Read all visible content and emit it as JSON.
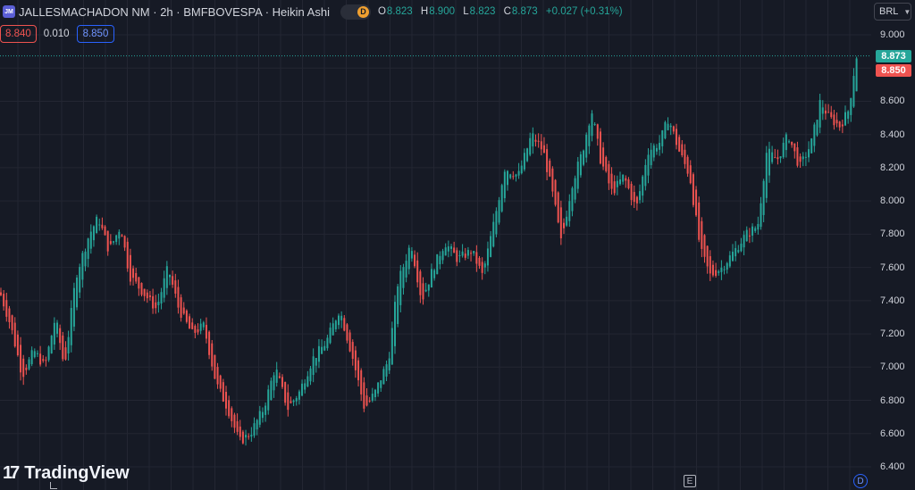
{
  "header": {
    "symbol_icon": "JM",
    "title": "JALLESMACHADON NM · 2h · BMFBOVESPA · Heikin Ashi",
    "data_pill_label": "D",
    "ohlc": {
      "o_label": "O",
      "o_value": "8.823",
      "h_label": "H",
      "h_value": "8.900",
      "l_label": "L",
      "l_value": "8.823",
      "c_label": "C",
      "c_value": "8.873",
      "change": "+0.027 (+0.31%)"
    },
    "bid": "8.840",
    "spread": "0.010",
    "ask": "8.850",
    "currency": "BRL"
  },
  "price_axis": {
    "labels": [
      "9.000",
      "8.600",
      "8.400",
      "8.200",
      "8.000",
      "7.800",
      "7.600",
      "7.400",
      "7.200",
      "7.000",
      "6.800",
      "6.600",
      "6.400"
    ],
    "last_price": "8.873",
    "ask_price": "8.850"
  },
  "chart_data": {
    "type": "candlestick",
    "style": "Heikin Ashi",
    "interval": "2h",
    "y_range": [
      6.4,
      9.0
    ],
    "grid": true,
    "last": 8.873,
    "close_path_approx": [
      [
        0,
        7.45
      ],
      [
        12,
        7.25
      ],
      [
        25,
        6.95
      ],
      [
        38,
        7.1
      ],
      [
        50,
        7.0
      ],
      [
        62,
        7.3
      ],
      [
        72,
        7.0
      ],
      [
        85,
        7.55
      ],
      [
        100,
        7.8
      ],
      [
        110,
        7.9
      ],
      [
        122,
        7.7
      ],
      [
        135,
        7.85
      ],
      [
        145,
        7.55
      ],
      [
        160,
        7.45
      ],
      [
        175,
        7.35
      ],
      [
        188,
        7.6
      ],
      [
        200,
        7.35
      ],
      [
        215,
        7.2
      ],
      [
        228,
        7.25
      ],
      [
        242,
        6.9
      ],
      [
        255,
        6.75
      ],
      [
        268,
        6.55
      ],
      [
        280,
        6.6
      ],
      [
        295,
        6.75
      ],
      [
        308,
        7.0
      ],
      [
        322,
        6.75
      ],
      [
        335,
        6.85
      ],
      [
        350,
        7.05
      ],
      [
        365,
        7.15
      ],
      [
        380,
        7.35
      ],
      [
        395,
        7.05
      ],
      [
        408,
        6.75
      ],
      [
        420,
        6.85
      ],
      [
        435,
        7.05
      ],
      [
        445,
        7.5
      ],
      [
        460,
        7.75
      ],
      [
        472,
        7.4
      ],
      [
        485,
        7.6
      ],
      [
        498,
        7.75
      ],
      [
        512,
        7.65
      ],
      [
        528,
        7.7
      ],
      [
        540,
        7.55
      ],
      [
        552,
        7.85
      ],
      [
        565,
        8.2
      ],
      [
        580,
        8.15
      ],
      [
        595,
        8.4
      ],
      [
        608,
        8.3
      ],
      [
        620,
        8.0
      ],
      [
        628,
        7.75
      ],
      [
        640,
        8.1
      ],
      [
        652,
        8.3
      ],
      [
        662,
        8.55
      ],
      [
        672,
        8.25
      ],
      [
        685,
        8.05
      ],
      [
        698,
        8.15
      ],
      [
        712,
        7.95
      ],
      [
        725,
        8.3
      ],
      [
        738,
        8.35
      ],
      [
        748,
        8.5
      ],
      [
        760,
        8.3
      ],
      [
        772,
        8.15
      ],
      [
        784,
        7.7
      ],
      [
        795,
        7.55
      ],
      [
        808,
        7.6
      ],
      [
        822,
        7.7
      ],
      [
        835,
        7.8
      ],
      [
        848,
        7.85
      ],
      [
        858,
        8.3
      ],
      [
        870,
        8.25
      ],
      [
        882,
        8.4
      ],
      [
        895,
        8.2
      ],
      [
        908,
        8.35
      ],
      [
        918,
        8.6
      ],
      [
        928,
        8.5
      ],
      [
        940,
        8.45
      ],
      [
        950,
        8.55
      ],
      [
        958,
        8.87
      ]
    ]
  },
  "branding": {
    "logo_mark": "17",
    "logo_text": "TradingView"
  },
  "markers": {
    "earnings": "E",
    "dividend": "D"
  },
  "colors": {
    "up": "#26a69a",
    "down": "#ef5350",
    "background": "#161a25",
    "grid": "#232632"
  }
}
